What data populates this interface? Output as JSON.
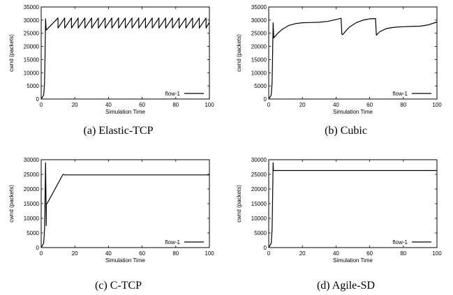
{
  "chart_data": [
    {
      "type": "line",
      "caption": "(a)  Elastic-TCP",
      "xlabel": "Simulation Time",
      "ylabel": "cwnd (packets)",
      "xlim": [
        0,
        100
      ],
      "ylim": [
        0,
        35000
      ],
      "xticks": [
        0,
        20,
        40,
        60,
        80,
        100
      ],
      "yticks": [
        0,
        5000,
        10000,
        15000,
        20000,
        25000,
        30000,
        35000
      ],
      "legend": "bottom-right",
      "grid": false,
      "series": [
        {
          "name": "flow-1",
          "x": [
            0,
            1.5,
            2.0,
            2.3,
            2.6,
            3.0,
            10.0,
            10.0,
            14.0,
            14.0,
            18.0,
            18.0,
            22.0,
            22.0,
            26.0,
            26.0,
            30.0,
            30.0,
            34.0,
            34.0,
            38.0,
            38.0,
            42.0,
            42.0,
            46.0,
            46.0,
            50.0,
            50.0,
            54.0,
            54.0,
            58.0,
            58.0,
            62.0,
            62.0,
            66.0,
            66.0,
            70.0,
            70.0,
            74.0,
            74.0,
            78.0,
            78.0,
            82.0,
            82.0,
            86.0,
            86.0,
            90.0,
            90.0,
            94.0,
            94.0,
            98.0,
            98.0,
            100.0
          ],
          "y": [
            0,
            1500,
            6000,
            16000,
            30500,
            26200,
            30800,
            27000,
            30800,
            27000,
            30800,
            27000,
            30800,
            27000,
            30800,
            27000,
            30800,
            27000,
            30800,
            27000,
            30800,
            27000,
            30800,
            27000,
            30800,
            27000,
            30800,
            27000,
            30800,
            27000,
            30800,
            27000,
            30800,
            27000,
            30800,
            27000,
            30800,
            27000,
            30800,
            27000,
            30800,
            27000,
            30800,
            27000,
            30800,
            27000,
            30800,
            27000,
            30800,
            27000,
            30800,
            27000,
            29200
          ]
        }
      ]
    },
    {
      "type": "line",
      "caption": "(b)  Cubic",
      "xlabel": "Simulation Time",
      "ylabel": "cwnd (packets)",
      "xlim": [
        0,
        100
      ],
      "ylim": [
        0,
        35000
      ],
      "xticks": [
        0,
        20,
        40,
        60,
        80,
        100
      ],
      "yticks": [
        0,
        5000,
        10000,
        15000,
        20000,
        25000,
        30000,
        35000
      ],
      "legend": "bottom-right",
      "grid": false,
      "series": [
        {
          "name": "flow-1",
          "x": [
            0,
            1.5,
            2.0,
            2.3,
            2.6,
            3.0,
            5.0,
            8.0,
            12.0,
            16.0,
            20.0,
            25.0,
            30.0,
            35.0,
            40.0,
            43.0,
            43.5,
            44.0,
            46.0,
            48.0,
            52.0,
            56.0,
            60.0,
            63.5,
            64.0,
            66.0,
            70.0,
            75.0,
            80.0,
            85.0,
            90.0,
            95.0,
            100.0
          ],
          "y": [
            0,
            1500,
            6000,
            16000,
            29000,
            23200,
            24800,
            26500,
            28000,
            28700,
            29000,
            29100,
            29200,
            29500,
            30200,
            30700,
            24600,
            24500,
            26000,
            27400,
            29000,
            30000,
            30500,
            30600,
            24300,
            25600,
            26800,
            27300,
            27500,
            27600,
            27700,
            28200,
            29300
          ]
        }
      ]
    },
    {
      "type": "line",
      "caption": "(c)  C-TCP",
      "xlabel": "Simulation Time",
      "ylabel": "cwnd (packets)",
      "xlim": [
        0,
        100
      ],
      "ylim": [
        0,
        30000
      ],
      "xticks": [
        0,
        20,
        40,
        60,
        80,
        100
      ],
      "yticks": [
        0,
        5000,
        10000,
        15000,
        20000,
        25000,
        30000
      ],
      "legend": "bottom-right",
      "grid": false,
      "series": [
        {
          "name": "flow-1",
          "x": [
            0,
            1.5,
            2.0,
            2.3,
            2.6,
            2.9,
            3.0,
            3.1,
            3.3,
            3.5,
            12.5,
            13.0,
            14.0,
            20.0,
            30.0,
            40.0,
            50.0,
            60.0,
            70.0,
            80.0,
            90.0,
            100.0
          ],
          "y": [
            0,
            1500,
            6000,
            16000,
            29000,
            15000,
            7500,
            15000,
            15000,
            15000,
            24500,
            25000,
            24800,
            24800,
            24800,
            24800,
            24800,
            24800,
            24800,
            24800,
            24800,
            24800
          ]
        }
      ]
    },
    {
      "type": "line",
      "caption": "(d)  Agile-SD",
      "xlabel": "Simulation Time",
      "ylabel": "cwnd (packets)",
      "xlim": [
        0,
        100
      ],
      "ylim": [
        0,
        30000
      ],
      "xticks": [
        0,
        20,
        40,
        60,
        80,
        100
      ],
      "yticks": [
        0,
        5000,
        10000,
        15000,
        20000,
        25000,
        30000
      ],
      "legend": "bottom-right",
      "grid": false,
      "series": [
        {
          "name": "flow-1",
          "x": [
            0,
            1.5,
            2.0,
            2.3,
            2.6,
            2.8,
            3.0,
            10.0,
            30.0,
            50.0,
            70.0,
            90.0,
            100.0
          ],
          "y": [
            0,
            1500,
            6000,
            16000,
            29000,
            26300,
            26300,
            26300,
            26300,
            26300,
            26300,
            26300,
            26300
          ]
        }
      ]
    }
  ]
}
